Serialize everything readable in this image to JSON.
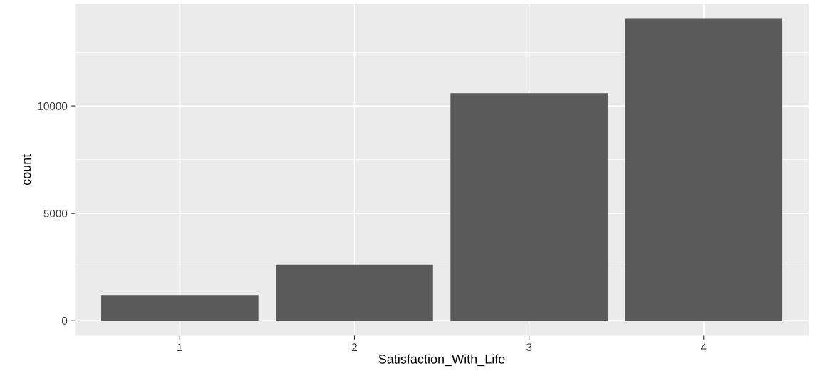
{
  "chart_data": {
    "type": "bar",
    "xlabel": "Satisfaction_With_Life",
    "ylabel": "count",
    "categories": [
      "1",
      "2",
      "3",
      "4"
    ],
    "values": [
      1190,
      2600,
      10590,
      14060
    ],
    "color": "#595959",
    "ylim": [
      -703,
      14763
    ],
    "yticks": [
      0,
      5000,
      10000
    ],
    "grid": true
  }
}
